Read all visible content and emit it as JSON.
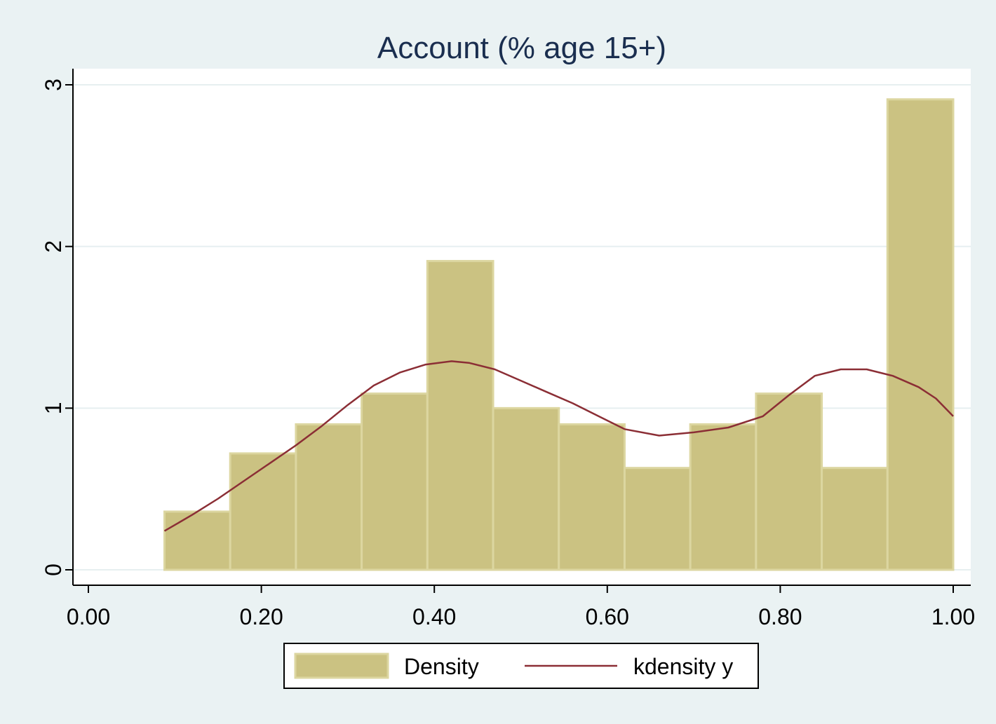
{
  "chart_data": {
    "type": "bar",
    "title": "Account (% age 15+)",
    "xlabel": "",
    "ylabel": "",
    "xlim": [
      0,
      1
    ],
    "ylim": [
      0,
      3
    ],
    "x_ticks": [
      "0.00",
      "0.20",
      "0.40",
      "0.60",
      "0.80",
      "1.00"
    ],
    "y_ticks": [
      "0",
      "1",
      "2",
      "3"
    ],
    "grid": true,
    "legend_position": "bottom",
    "bins": [
      {
        "x0": 0.088,
        "x1": 0.164,
        "value": 0.36
      },
      {
        "x0": 0.164,
        "x1": 0.24,
        "value": 0.72
      },
      {
        "x0": 0.24,
        "x1": 0.316,
        "value": 0.9
      },
      {
        "x0": 0.316,
        "x1": 0.392,
        "value": 1.09
      },
      {
        "x0": 0.392,
        "x1": 0.468,
        "value": 1.91
      },
      {
        "x0": 0.468,
        "x1": 0.544,
        "value": 1.0
      },
      {
        "x0": 0.544,
        "x1": 0.62,
        "value": 0.9
      },
      {
        "x0": 0.62,
        "x1": 0.696,
        "value": 0.63
      },
      {
        "x0": 0.696,
        "x1": 0.772,
        "value": 0.9
      },
      {
        "x0": 0.772,
        "x1": 0.848,
        "value": 1.09
      },
      {
        "x0": 0.848,
        "x1": 0.924,
        "value": 0.63
      },
      {
        "x0": 0.924,
        "x1": 1.0,
        "value": 2.91
      }
    ],
    "series": [
      {
        "name": "kdensity y",
        "type": "line",
        "color": "#8b2e35",
        "points": [
          [
            0.088,
            0.24
          ],
          [
            0.12,
            0.34
          ],
          [
            0.15,
            0.44
          ],
          [
            0.18,
            0.55
          ],
          [
            0.21,
            0.66
          ],
          [
            0.24,
            0.77
          ],
          [
            0.27,
            0.89
          ],
          [
            0.3,
            1.02
          ],
          [
            0.33,
            1.14
          ],
          [
            0.36,
            1.22
          ],
          [
            0.39,
            1.27
          ],
          [
            0.42,
            1.29
          ],
          [
            0.44,
            1.28
          ],
          [
            0.47,
            1.24
          ],
          [
            0.5,
            1.17
          ],
          [
            0.53,
            1.1
          ],
          [
            0.56,
            1.03
          ],
          [
            0.59,
            0.95
          ],
          [
            0.62,
            0.87
          ],
          [
            0.66,
            0.83
          ],
          [
            0.7,
            0.85
          ],
          [
            0.74,
            0.88
          ],
          [
            0.78,
            0.95
          ],
          [
            0.81,
            1.08
          ],
          [
            0.84,
            1.2
          ],
          [
            0.87,
            1.24
          ],
          [
            0.9,
            1.24
          ],
          [
            0.93,
            1.2
          ],
          [
            0.96,
            1.13
          ],
          [
            0.98,
            1.06
          ],
          [
            1.0,
            0.95
          ]
        ]
      }
    ],
    "legend": [
      {
        "label": "Density",
        "kind": "bar",
        "color": "#cbc282"
      },
      {
        "label": "kdensity y",
        "kind": "line",
        "color": "#8b2e35"
      }
    ],
    "colors": {
      "background": "#eaf2f3",
      "plot_background": "#ffffff",
      "bar_fill": "#cbc282",
      "bar_stroke": "#dcd6a0",
      "gridline": "#e6eff0",
      "title": "#1a2e4f"
    }
  }
}
